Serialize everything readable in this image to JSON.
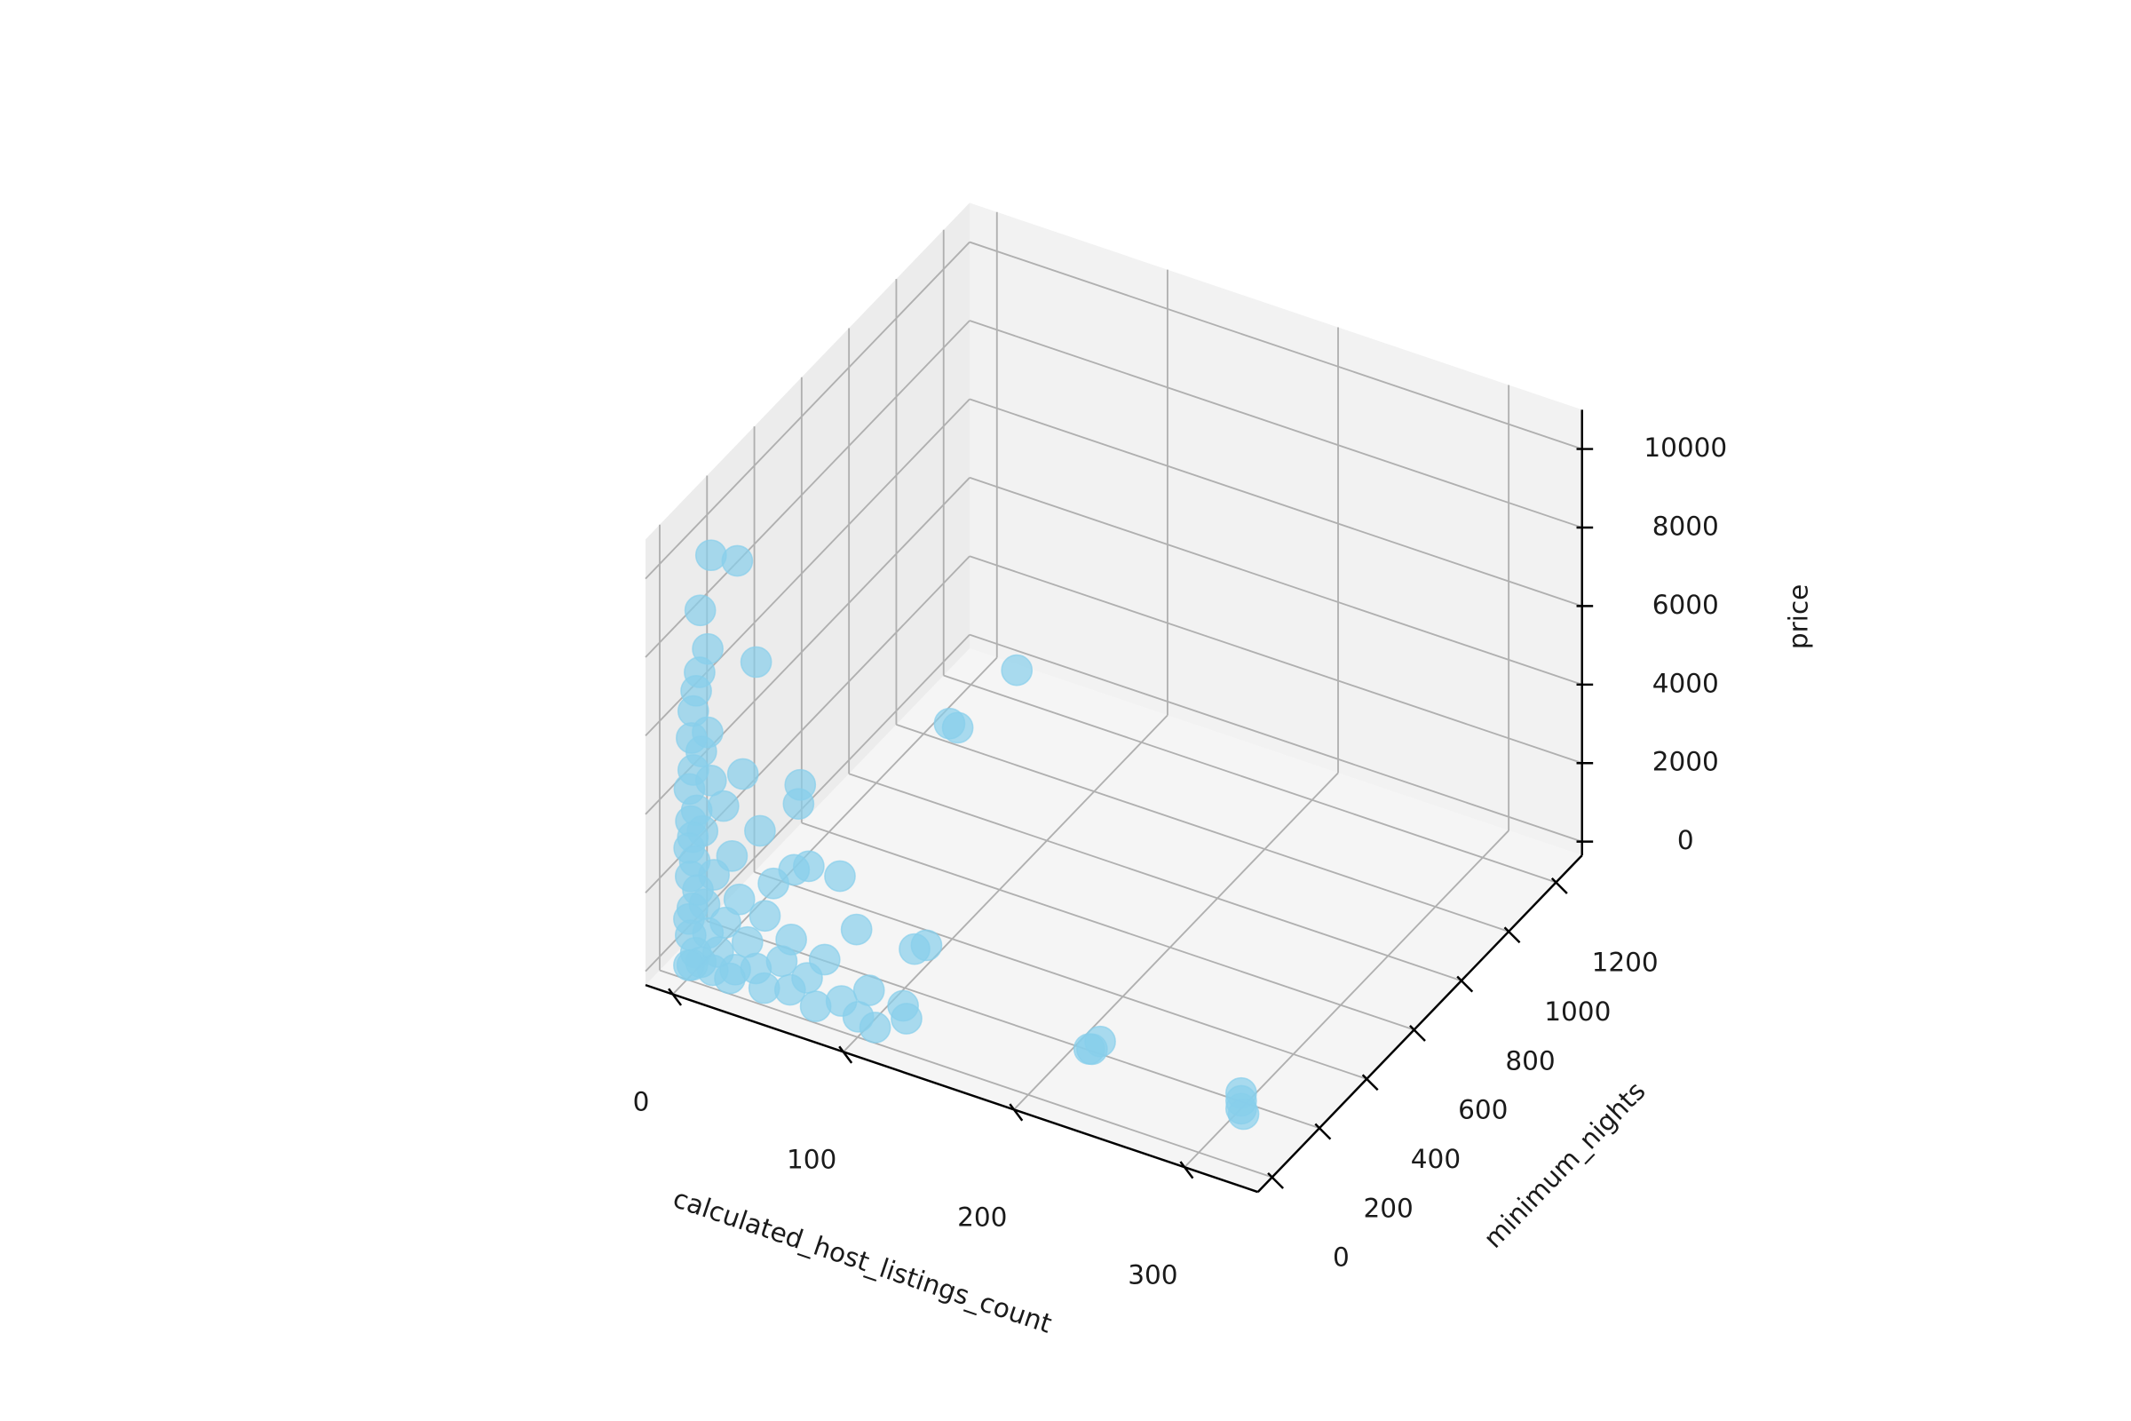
{
  "chart_data": {
    "type": "scatter3d",
    "xlabel": "calculated_host_listings_count",
    "ylabel": "minimum_nights",
    "zlabel": "price",
    "color": "#87ceeb",
    "alpha": 0.7,
    "grid": true,
    "xlim": [
      -16,
      343
    ],
    "ylim": [
      -60,
      1310
    ],
    "zlim": [
      -350,
      11000
    ],
    "xticks": [
      0,
      100,
      200,
      300
    ],
    "yticks": [
      0,
      200,
      400,
      600,
      800,
      1000,
      1200
    ],
    "zticks": [
      0,
      2000,
      4000,
      6000,
      8000,
      10000
    ],
    "x": [
      3,
      17,
      5,
      8,
      35,
      6,
      4,
      3,
      10,
      2,
      7,
      30,
      3,
      12,
      1,
      20,
      5,
      40,
      2,
      8,
      3,
      25,
      65,
      64,
      70,
      88,
      60,
      98,
      139,
      132,
      50,
      1,
      4,
      15,
      2,
      30,
      6,
      45,
      10,
      3,
      60,
      22,
      80,
      1,
      35,
      12,
      55,
      106,
      126,
      128,
      2,
      70,
      18,
      40,
      90,
      5,
      28,
      60,
      8,
      100,
      15,
      45,
      3,
      75,
      25,
      110,
      1,
      20,
      18,
      20,
      215,
      220,
      218,
      311,
      311,
      311,
      311
    ],
    "y": [
      80,
      90,
      20,
      30,
      40,
      10,
      10,
      5,
      15,
      5,
      10,
      20,
      5,
      15,
      3,
      10,
      5,
      20,
      2,
      8,
      3,
      10,
      10,
      10,
      10,
      12,
      20,
      10,
      10,
      10,
      5,
      2,
      4,
      6,
      1,
      5,
      3,
      5,
      2,
      1,
      8,
      4,
      5,
      1,
      3,
      2,
      4,
      5,
      5,
      5,
      1,
      3,
      2,
      3,
      4,
      1,
      2,
      3,
      1,
      3,
      1,
      2,
      1,
      3,
      1,
      2,
      1,
      1000,
      980,
      1250,
      150,
      160,
      140,
      100,
      100,
      100,
      110
    ],
    "z": [
      10000,
      10000,
      9000,
      8000,
      8000,
      7500,
      7000,
      6500,
      6000,
      5800,
      5500,
      5200,
      5000,
      4800,
      4500,
      4300,
      4000,
      3900,
      3700,
      3500,
      3300,
      3100,
      5500,
      5000,
      3500,
      3500,
      3200,
      2300,
      2500,
      2300,
      2800,
      3000,
      2700,
      2500,
      2300,
      2100,
      2000,
      1900,
      1700,
      1500,
      1500,
      1400,
      1300,
      1200,
      1100,
      1000,
      900,
      900,
      800,
      500,
      800,
      700,
      600,
      500,
      400,
      400,
      300,
      250,
      200,
      150,
      100,
      80,
      60,
      50,
      40,
      30,
      20,
      100,
      300,
      0,
      100,
      300,
      200,
      300,
      700,
      500,
      100
    ]
  }
}
